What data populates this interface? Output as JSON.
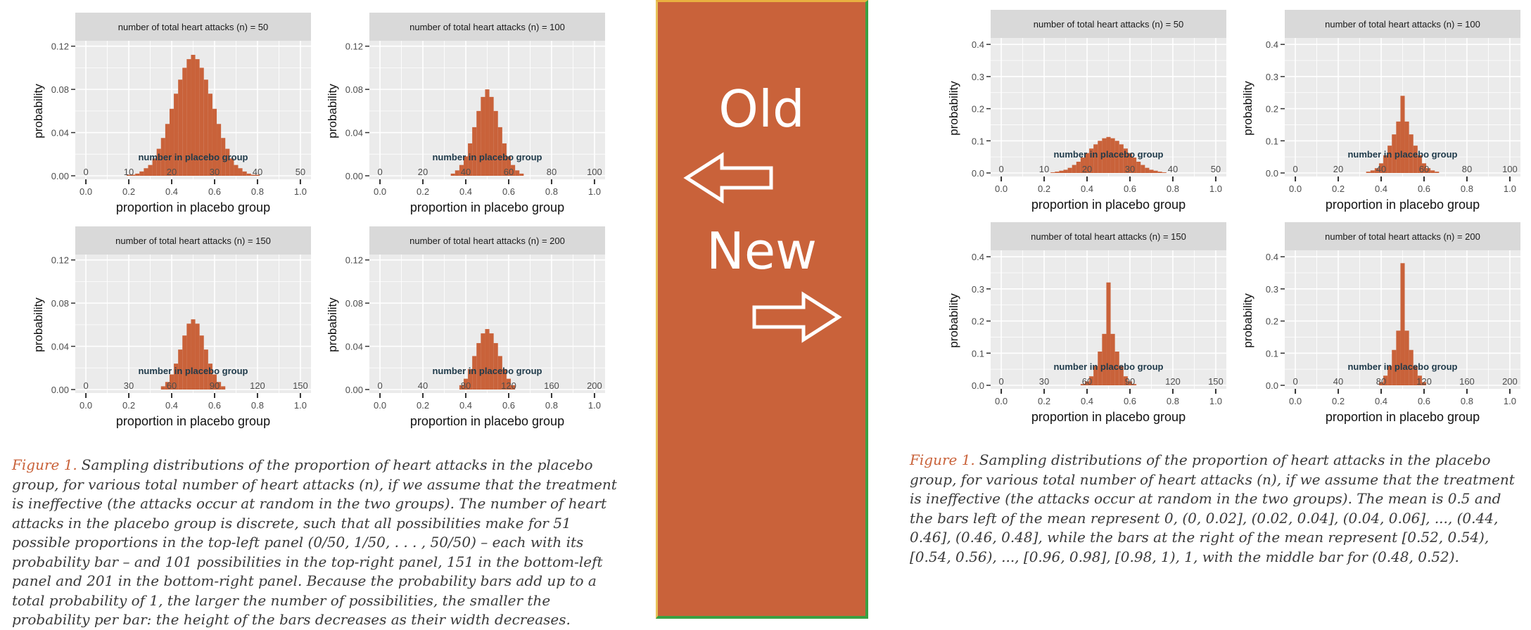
{
  "colors": {
    "bar": "#c9623a",
    "panel_bg": "#ebebeb",
    "strip_bg": "#d9d9d9",
    "grid": "#ffffff",
    "caption_accent": "#c9623a",
    "divider_fill": "#c9623a"
  },
  "divider": {
    "old_label": "Old",
    "new_label": "New",
    "icons": [
      "left-arrow-icon",
      "right-arrow-icon"
    ]
  },
  "strip_prefix": "number of total heart attacks (n) = ",
  "inner_label": "number in placebo group",
  "xlabel": "proportion in placebo group",
  "ylabel": "probability",
  "proportion_ticks": [
    "0.0",
    "0.2",
    "0.4",
    "0.6",
    "0.8",
    "1.0"
  ],
  "old": {
    "y_ticks": [
      "0.00",
      "0.04",
      "0.08",
      "0.12"
    ],
    "caption_lead": "Figure 1.",
    "caption_text": "Sampling distributions of the proportion of heart attacks in the placebo group, for various total number of heart attacks (n), if we assume that the treatment is ineffective (the attacks occur at random in the two groups). The number of heart attacks in the placebo group is discrete, such that all possibilities make for 51 possible proportions in the top-left panel (0/50, 1/50, . . . , 50/50) – each with its probability bar – and 101 possibilities in the top-right panel, 151 in the bottom-left panel and 201 in the bottom-right panel. Because the probability bars add up to a total probability of 1, the larger the number of possibilities, the smaller the probability per bar: the height of the bars decreases as their width decreases."
  },
  "new": {
    "y_ticks": [
      "0.0",
      "0.1",
      "0.2",
      "0.3",
      "0.4"
    ],
    "caption_lead": "Figure 1.",
    "caption_text": "Sampling distributions of the proportion of heart attacks in the placebo group, for various total number of heart attacks (n), if we assume that the treatment is ineffective (the attacks occur at random in the two groups). The mean is 0.5 and the bars left of the mean represent 0, (0, 0.02], (0.02, 0.04], (0.04, 0.06], ..., (0.44, 0.46], (0.46, 0.48], while the bars at the right of the mean represent [0.52, 0.54), [0.54, 0.56), ..., [0.96, 0.98], [0.98, 1), 1, with the middle bar for (0.48, 0.52)."
  },
  "chart_data": [
    {
      "group": "old",
      "type": "bar",
      "n": "50",
      "count_ticks": [
        "0",
        "10",
        "20",
        "30",
        "40",
        "50"
      ],
      "ylim": [
        0,
        0.125
      ],
      "x": [
        0.18,
        0.2,
        0.22,
        0.24,
        0.26,
        0.28,
        0.3,
        0.32,
        0.34,
        0.36,
        0.38,
        0.4,
        0.42,
        0.44,
        0.46,
        0.48,
        0.5,
        0.52,
        0.54,
        0.56,
        0.58,
        0.6,
        0.62,
        0.64,
        0.66,
        0.68,
        0.7,
        0.72,
        0.74,
        0.76,
        0.78,
        0.8,
        0.82
      ],
      "values": [
        0.0,
        0.001,
        0.001,
        0.002,
        0.004,
        0.007,
        0.01,
        0.016,
        0.025,
        0.035,
        0.048,
        0.062,
        0.076,
        0.089,
        0.1,
        0.108,
        0.112,
        0.108,
        0.1,
        0.089,
        0.076,
        0.062,
        0.048,
        0.035,
        0.025,
        0.016,
        0.01,
        0.007,
        0.004,
        0.002,
        0.001,
        0.001,
        0.0
      ]
    },
    {
      "group": "old",
      "type": "bar",
      "n": "100",
      "count_ticks": [
        "0",
        "20",
        "40",
        "60",
        "80",
        "100"
      ],
      "ylim": [
        0,
        0.125
      ],
      "x": [
        0.34,
        0.36,
        0.38,
        0.4,
        0.42,
        0.44,
        0.46,
        0.48,
        0.5,
        0.52,
        0.54,
        0.56,
        0.58,
        0.6,
        0.62,
        0.64,
        0.66
      ],
      "values": [
        0.002,
        0.005,
        0.01,
        0.018,
        0.03,
        0.045,
        0.06,
        0.073,
        0.08,
        0.073,
        0.06,
        0.045,
        0.03,
        0.018,
        0.01,
        0.005,
        0.002
      ]
    },
    {
      "group": "old",
      "type": "bar",
      "n": "150",
      "count_ticks": [
        "0",
        "30",
        "60",
        "90",
        "120",
        "150"
      ],
      "ylim": [
        0,
        0.125
      ],
      "x": [
        0.36,
        0.38,
        0.4,
        0.42,
        0.44,
        0.46,
        0.48,
        0.5,
        0.52,
        0.54,
        0.56,
        0.58,
        0.6,
        0.62,
        0.64
      ],
      "values": [
        0.003,
        0.007,
        0.014,
        0.024,
        0.037,
        0.05,
        0.061,
        0.065,
        0.061,
        0.05,
        0.037,
        0.024,
        0.014,
        0.007,
        0.003
      ]
    },
    {
      "group": "old",
      "type": "bar",
      "n": "200",
      "count_ticks": [
        "0",
        "40",
        "80",
        "120",
        "160",
        "200"
      ],
      "ylim": [
        0,
        0.125
      ],
      "x": [
        0.38,
        0.4,
        0.42,
        0.44,
        0.46,
        0.48,
        0.5,
        0.52,
        0.54,
        0.56,
        0.58,
        0.6,
        0.62
      ],
      "values": [
        0.004,
        0.01,
        0.019,
        0.031,
        0.043,
        0.052,
        0.056,
        0.052,
        0.043,
        0.031,
        0.019,
        0.01,
        0.004
      ]
    },
    {
      "group": "new",
      "type": "bar",
      "n": "50",
      "count_ticks": [
        "0",
        "10",
        "20",
        "30",
        "40",
        "50"
      ],
      "ylim": [
        0,
        0.42
      ],
      "x": [
        0.24,
        0.26,
        0.28,
        0.3,
        0.32,
        0.34,
        0.36,
        0.38,
        0.4,
        0.42,
        0.44,
        0.46,
        0.48,
        0.5,
        0.52,
        0.54,
        0.56,
        0.58,
        0.6,
        0.62,
        0.64,
        0.66,
        0.68,
        0.7,
        0.72,
        0.74,
        0.76
      ],
      "values": [
        0.002,
        0.004,
        0.007,
        0.01,
        0.016,
        0.025,
        0.035,
        0.048,
        0.062,
        0.076,
        0.089,
        0.1,
        0.108,
        0.112,
        0.108,
        0.1,
        0.089,
        0.076,
        0.062,
        0.048,
        0.035,
        0.025,
        0.016,
        0.01,
        0.007,
        0.004,
        0.002
      ]
    },
    {
      "group": "new",
      "type": "bar",
      "n": "100",
      "count_ticks": [
        "0",
        "20",
        "40",
        "60",
        "80",
        "100"
      ],
      "ylim": [
        0,
        0.42
      ],
      "x": [
        0.34,
        0.36,
        0.38,
        0.4,
        0.42,
        0.44,
        0.46,
        0.48,
        0.5,
        0.52,
        0.54,
        0.56,
        0.58,
        0.6,
        0.62,
        0.64,
        0.66
      ],
      "values": [
        0.004,
        0.008,
        0.015,
        0.03,
        0.055,
        0.085,
        0.12,
        0.16,
        0.24,
        0.16,
        0.12,
        0.085,
        0.055,
        0.03,
        0.015,
        0.008,
        0.004
      ]
    },
    {
      "group": "new",
      "type": "bar",
      "n": "150",
      "count_ticks": [
        "0",
        "30",
        "60",
        "90",
        "120",
        "150"
      ],
      "ylim": [
        0,
        0.42
      ],
      "x": [
        0.38,
        0.4,
        0.42,
        0.44,
        0.46,
        0.48,
        0.5,
        0.52,
        0.54,
        0.56,
        0.58,
        0.6,
        0.62
      ],
      "values": [
        0.004,
        0.012,
        0.028,
        0.06,
        0.105,
        0.16,
        0.32,
        0.16,
        0.105,
        0.06,
        0.028,
        0.012,
        0.004
      ]
    },
    {
      "group": "new",
      "type": "bar",
      "n": "200",
      "count_ticks": [
        "0",
        "40",
        "80",
        "120",
        "160",
        "200"
      ],
      "ylim": [
        0,
        0.42
      ],
      "x": [
        0.4,
        0.42,
        0.44,
        0.46,
        0.48,
        0.5,
        0.52,
        0.54,
        0.56,
        0.58,
        0.6
      ],
      "values": [
        0.01,
        0.03,
        0.06,
        0.11,
        0.17,
        0.38,
        0.17,
        0.11,
        0.06,
        0.03,
        0.01
      ]
    }
  ]
}
